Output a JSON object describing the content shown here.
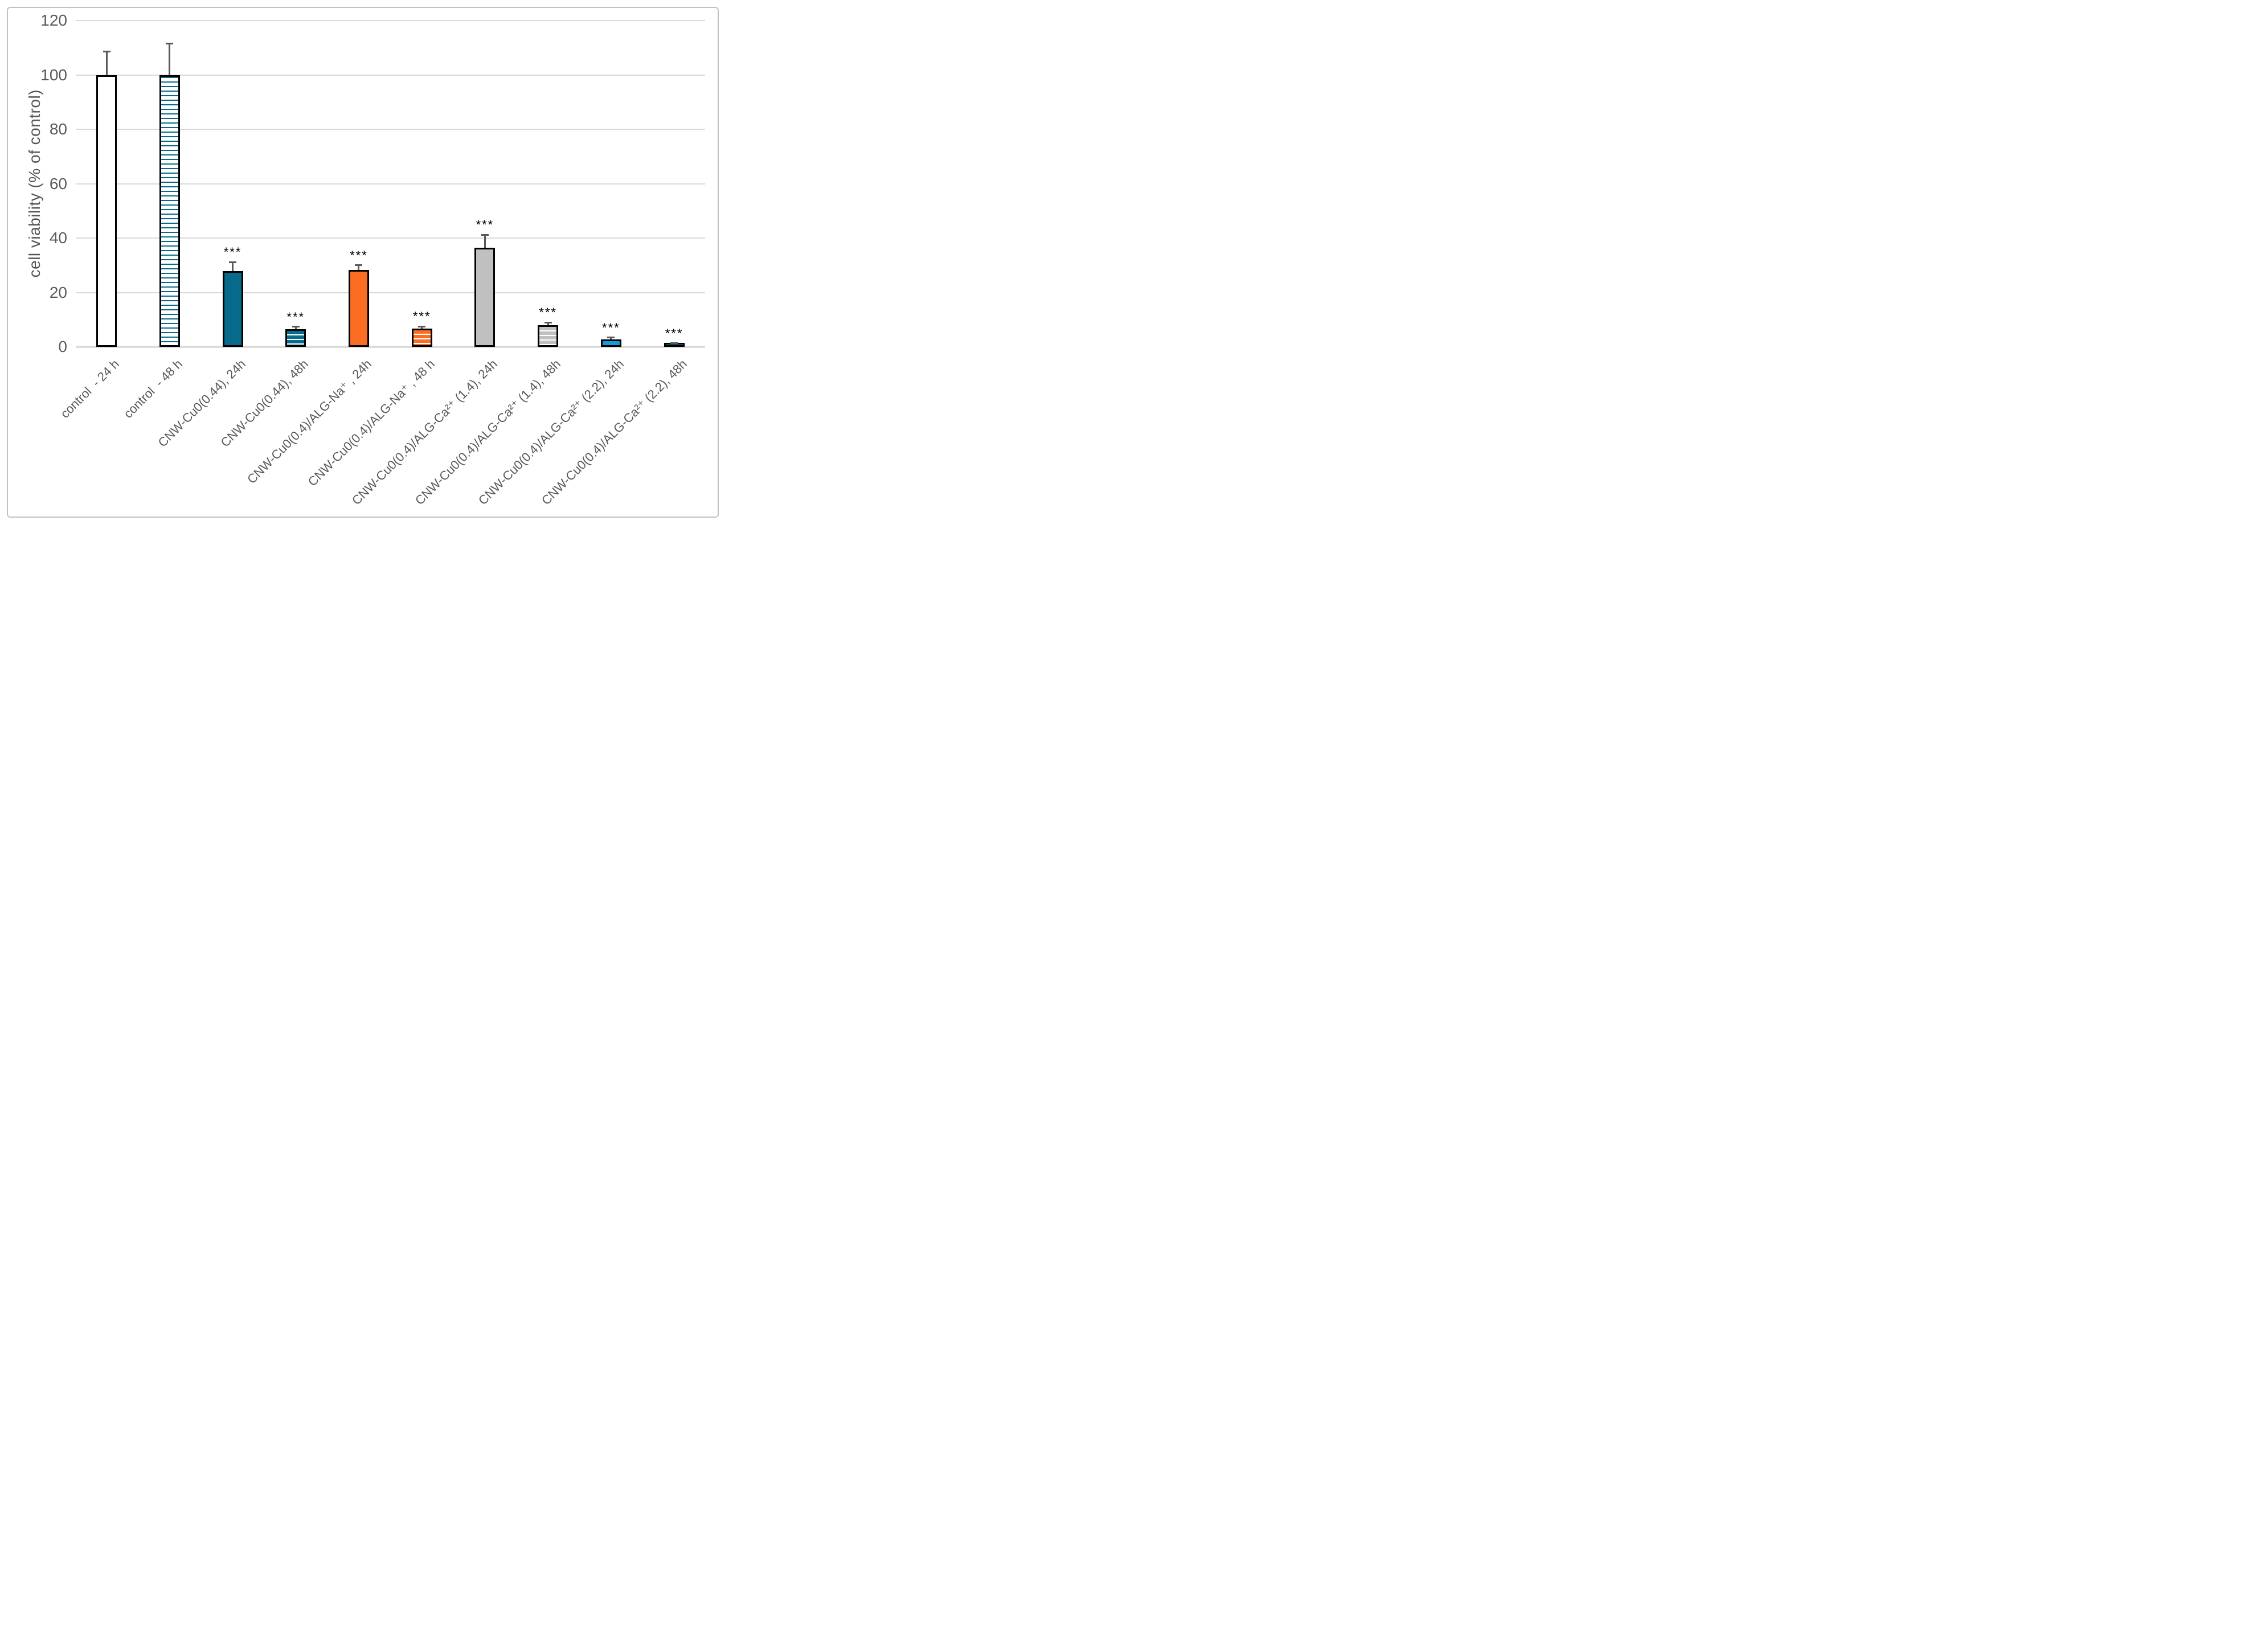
{
  "figure": {
    "background": "#FFFFFF",
    "border_color": "#C1C1C1"
  },
  "chart_data": {
    "type": "bar",
    "title": "",
    "xlabel": "",
    "ylabel": "cell viability (% of control)",
    "ylim": [
      0,
      120
    ],
    "yticks": [
      0,
      20,
      40,
      60,
      80,
      100,
      120
    ],
    "grid": "horizontal",
    "legend": "none",
    "categories": [
      "control  - 24 h",
      "control  - 48 h",
      "CNW-Cu0(0.44), 24h",
      "CNW-Cu0(0.44), 48h",
      "CNW-Cu0(0.4)/ALG-Na⁺ , 24h",
      "CNW-Cu0(0.4)/ALG-Na⁺ , 48 h",
      "CNW-Cu0(0.4)/ALG-Ca²⁺ (1.4), 24h",
      "CNW-Cu0(0.4)/ALG-Ca²⁺ (1.4), 48h",
      "CNW-Cu0(0.4)/ALG-Ca²⁺ (2.2), 24h",
      "CNW-Cu0(0.4)/ALG-Ca²⁺ (2.2), 48h"
    ],
    "values": [
      100,
      100,
      27.9,
      6.4,
      28.3,
      6.7,
      36.5,
      8.0,
      2.8,
      1.0
    ],
    "errors_plus": [
      8.6,
      11.5,
      3.3,
      1.0,
      1.7,
      0.8,
      4.7,
      1.0,
      0.6,
      0.35
    ],
    "significance": [
      "",
      "",
      "***",
      "***",
      "***",
      "***",
      "***",
      "***",
      "***",
      "***"
    ],
    "bar_styles": [
      {
        "fill": "#FFFFFF",
        "pattern": "solid",
        "stripe": null,
        "border": "#000000"
      },
      {
        "fill": "#FFFFFF",
        "pattern": "hstripes",
        "stripe": "#076A8B",
        "border": "#000000"
      },
      {
        "fill": "#076A8B",
        "pattern": "solid",
        "stripe": null,
        "border": "#000000"
      },
      {
        "fill": "#076A8B",
        "pattern": "hstripes",
        "stripe": "#FFFFFF",
        "border": "#000000"
      },
      {
        "fill": "#FC6D24",
        "pattern": "solid",
        "stripe": null,
        "border": "#000000"
      },
      {
        "fill": "#FC6D24",
        "pattern": "hstripes",
        "stripe": "#FFFFFF",
        "border": "#000000"
      },
      {
        "fill": "#C0C0C0",
        "pattern": "solid",
        "stripe": null,
        "border": "#000000"
      },
      {
        "fill": "#C0C0C0",
        "pattern": "hstripes",
        "stripe": "#FFFFFF",
        "border": "#000000"
      },
      {
        "fill": "#149BDB",
        "pattern": "solid",
        "stripe": null,
        "border": "#000000"
      },
      {
        "fill": "#149BDB",
        "pattern": "solid",
        "stripe": null,
        "border": "#000000"
      }
    ],
    "colors": {
      "teal": "#076A8B",
      "orange": "#FC6D24",
      "gray": "#C0C0C0",
      "light_blue": "#149BDB",
      "error_bar": "#595959",
      "gridline": "#D9D9D9",
      "axis_text": "#595959",
      "significance_marker": "#000000"
    }
  }
}
